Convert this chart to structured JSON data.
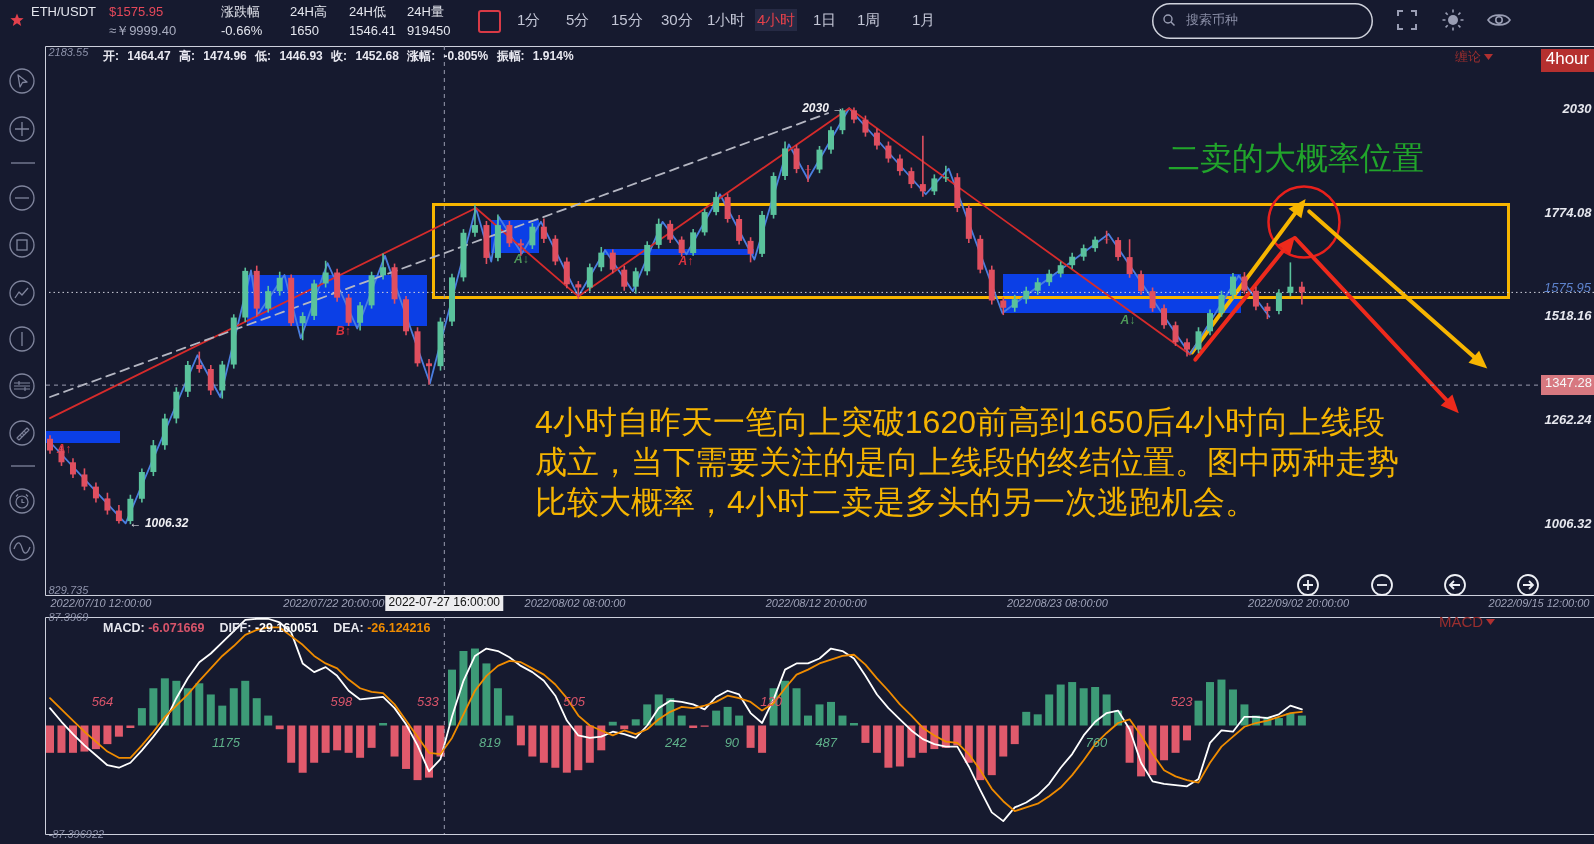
{
  "chart_data": [
    {
      "type": "other",
      "annotations": [
        "ETH/USDT",
        "$1575.95",
        "≈￥9999.40",
        "涨跌幅",
        "-0.66%",
        "24H高",
        "1650",
        "24H低",
        "1546.41",
        "24H量",
        "919450",
        "1分",
        "5分",
        "15分",
        "30分",
        "1小时",
        "4小时",
        "1日",
        "1周",
        "1月",
        "搜索币种"
      ]
    },
    {
      "type": "candlestick",
      "x": [
        "2022-07-10T12:00",
        "2022-07-11T00:00",
        "2022-07-11T12:00",
        "2022-07-12T00:00",
        "2022-07-12T12:00",
        "2022-07-13T00:00",
        "2022-07-13T12:00",
        "2022-07-14T00:00",
        "2022-07-14T12:00",
        "2022-07-15T00:00",
        "2022-07-15T12:00",
        "2022-07-16T00:00",
        "2022-07-16T12:00",
        "2022-07-17T00:00",
        "2022-07-17T12:00",
        "2022-07-18T00:00",
        "2022-07-18T12:00",
        "2022-07-19T00:00",
        "2022-07-19T12:00",
        "2022-07-20T00:00",
        "2022-07-20T12:00",
        "2022-07-21T00:00",
        "2022-07-21T12:00",
        "2022-07-22T00:00",
        "2022-07-22T12:00",
        "2022-07-23T00:00",
        "2022-07-23T12:00",
        "2022-07-24T00:00",
        "2022-07-24T12:00",
        "2022-07-25T00:00",
        "2022-07-25T12:00",
        "2022-07-26T00:00",
        "2022-07-26T12:00",
        "2022-07-27T00:00",
        "2022-07-27T12:00",
        "2022-07-28T00:00",
        "2022-07-28T12:00",
        "2022-07-29T00:00",
        "2022-07-29T12:00",
        "2022-07-30T00:00",
        "2022-07-30T12:00",
        "2022-07-31T00:00",
        "2022-07-31T12:00",
        "2022-08-01T00:00",
        "2022-08-01T12:00",
        "2022-08-02T00:00",
        "2022-08-02T12:00",
        "2022-08-03T00:00",
        "2022-08-03T12:00",
        "2022-08-04T00:00",
        "2022-08-04T12:00",
        "2022-08-05T00:00",
        "2022-08-05T12:00",
        "2022-08-06T00:00",
        "2022-08-06T12:00",
        "2022-08-07T00:00",
        "2022-08-07T12:00",
        "2022-08-08T00:00",
        "2022-08-08T12:00",
        "2022-08-09T00:00",
        "2022-08-09T12:00",
        "2022-08-10T00:00",
        "2022-08-10T12:00",
        "2022-08-11T00:00",
        "2022-08-11T12:00",
        "2022-08-12T00:00",
        "2022-08-12T12:00",
        "2022-08-13T00:00",
        "2022-08-13T12:00",
        "2022-08-14T00:00",
        "2022-08-14T12:00",
        "2022-08-15T00:00",
        "2022-08-15T12:00",
        "2022-08-16T00:00",
        "2022-08-16T12:00",
        "2022-08-17T00:00",
        "2022-08-17T12:00",
        "2022-08-18T00:00",
        "2022-08-18T12:00",
        "2022-08-19T00:00",
        "2022-08-19T12:00",
        "2022-08-20T00:00",
        "2022-08-20T12:00",
        "2022-08-21T00:00",
        "2022-08-21T12:00",
        "2022-08-22T00:00",
        "2022-08-22T12:00",
        "2022-08-23T00:00",
        "2022-08-23T12:00",
        "2022-08-24T00:00",
        "2022-08-24T12:00",
        "2022-08-25T00:00",
        "2022-08-25T12:00",
        "2022-08-26T00:00",
        "2022-08-26T12:00",
        "2022-08-27T00:00",
        "2022-08-27T12:00",
        "2022-08-28T00:00",
        "2022-08-28T12:00",
        "2022-08-29T00:00",
        "2022-08-29T12:00",
        "2022-08-30T00:00",
        "2022-08-30T12:00",
        "2022-08-31T00:00",
        "2022-08-31T12:00",
        "2022-09-01T00:00",
        "2022-09-01T12:00",
        "2022-09-02T00:00",
        "2022-09-02T12:00",
        "2022-09-03T00:00"
      ],
      "ohlc": [
        [
          1215,
          1222,
          1180,
          1186
        ],
        [
          1186,
          1195,
          1150,
          1157
        ],
        [
          1157,
          1165,
          1120,
          1127
        ],
        [
          1127,
          1140,
          1090,
          1097
        ],
        [
          1097,
          1105,
          1060,
          1068
        ],
        [
          1068,
          1080,
          1030,
          1038
        ],
        [
          1038,
          1050,
          1008,
          1012
        ],
        [
          1012,
          1075,
          1006.32,
          1067
        ],
        [
          1067,
          1140,
          1060,
          1133
        ],
        [
          1133,
          1210,
          1125,
          1199
        ],
        [
          1199,
          1275,
          1190,
          1265
        ],
        [
          1265,
          1340,
          1255,
          1331
        ],
        [
          1331,
          1405,
          1320,
          1397
        ],
        [
          1397,
          1428,
          1380,
          1387
        ],
        [
          1387,
          1395,
          1325,
          1334
        ],
        [
          1334,
          1405,
          1316,
          1398
        ],
        [
          1398,
          1520,
          1390,
          1514
        ],
        [
          1514,
          1635,
          1505,
          1629
        ],
        [
          1629,
          1640,
          1518,
          1536
        ],
        [
          1536,
          1590,
          1528,
          1579
        ],
        [
          1579,
          1625,
          1570,
          1612
        ],
        [
          1612,
          1618,
          1495,
          1500
        ],
        [
          1500,
          1525,
          1460,
          1518
        ],
        [
          1518,
          1605,
          1510,
          1598
        ],
        [
          1598,
          1652,
          1590,
          1625
        ],
        [
          1625,
          1632,
          1555,
          1563
        ],
        [
          1563,
          1570,
          1495,
          1501
        ],
        [
          1501,
          1550,
          1484,
          1544
        ],
        [
          1544,
          1625,
          1538,
          1618
        ],
        [
          1618,
          1670,
          1610,
          1638
        ],
        [
          1638,
          1645,
          1550,
          1559
        ],
        [
          1559,
          1565,
          1472,
          1480
        ],
        [
          1480,
          1488,
          1395,
          1401
        ],
        [
          1401,
          1410,
          1350,
          1394
        ],
        [
          1394,
          1512,
          1385,
          1504
        ],
        [
          1504,
          1620,
          1495,
          1613
        ],
        [
          1613,
          1730,
          1605,
          1723
        ],
        [
          1723,
          1790,
          1715,
          1742
        ],
        [
          1742,
          1750,
          1648,
          1661
        ],
        [
          1661,
          1766,
          1655,
          1742
        ],
        [
          1742,
          1750,
          1690,
          1697
        ],
        [
          1697,
          1705,
          1668,
          1692
        ],
        [
          1692,
          1745,
          1685,
          1738
        ],
        [
          1738,
          1756,
          1700,
          1708
        ],
        [
          1708,
          1715,
          1645,
          1652
        ],
        [
          1652,
          1660,
          1588,
          1596
        ],
        [
          1596,
          1602,
          1562,
          1588
        ],
        [
          1588,
          1645,
          1580,
          1638
        ],
        [
          1638,
          1686,
          1630,
          1674
        ],
        [
          1674,
          1680,
          1625,
          1632
        ],
        [
          1632,
          1640,
          1582,
          1590
        ],
        [
          1590,
          1635,
          1575,
          1628
        ],
        [
          1628,
          1700,
          1620,
          1693
        ],
        [
          1693,
          1756,
          1686,
          1745
        ],
        [
          1745,
          1752,
          1700,
          1706
        ],
        [
          1706,
          1712,
          1666,
          1673
        ],
        [
          1673,
          1730,
          1668,
          1724
        ],
        [
          1724,
          1780,
          1718,
          1774
        ],
        [
          1774,
          1822,
          1768,
          1811
        ],
        [
          1811,
          1818,
          1750,
          1757
        ],
        [
          1757,
          1765,
          1696,
          1703
        ],
        [
          1703,
          1710,
          1652,
          1671
        ],
        [
          1671,
          1775,
          1665,
          1767
        ],
        [
          1767,
          1870,
          1760,
          1863
        ],
        [
          1863,
          1946,
          1855,
          1931
        ],
        [
          1931,
          1938,
          1872,
          1880
        ],
        [
          1880,
          1888,
          1850,
          1879
        ],
        [
          1879,
          1935,
          1872,
          1928
        ],
        [
          1928,
          1983,
          1920,
          1976
        ],
        [
          1976,
          2028,
          1968,
          2025
        ],
        [
          2025,
          2030,
          1995,
          2002
        ],
        [
          2002,
          2010,
          1962,
          1970
        ],
        [
          1970,
          1978,
          1930,
          1938
        ],
        [
          1938,
          1946,
          1898,
          1906
        ],
        [
          1906,
          1914,
          1866,
          1875
        ],
        [
          1875,
          1882,
          1835,
          1843
        ],
        [
          1843,
          1960,
          1814,
          1825
        ],
        [
          1825,
          1865,
          1818,
          1857
        ],
        [
          1857,
          1886,
          1850,
          1860
        ],
        [
          1860,
          1868,
          1776,
          1784
        ],
        [
          1784,
          1790,
          1700,
          1708
        ],
        [
          1708,
          1715,
          1625,
          1632
        ],
        [
          1632,
          1640,
          1548,
          1556
        ],
        [
          1556,
          1562,
          1522,
          1538
        ],
        [
          1538,
          1568,
          1530,
          1559
        ],
        [
          1559,
          1588,
          1550,
          1580
        ],
        [
          1580,
          1610,
          1572,
          1601
        ],
        [
          1601,
          1630,
          1594,
          1622
        ],
        [
          1622,
          1650,
          1615,
          1643
        ],
        [
          1643,
          1672,
          1636,
          1664
        ],
        [
          1664,
          1692,
          1656,
          1685
        ],
        [
          1685,
          1712,
          1678,
          1706
        ],
        [
          1706,
          1726,
          1698,
          1705
        ],
        [
          1705,
          1710,
          1656,
          1663
        ],
        [
          1663,
          1705,
          1614,
          1621
        ],
        [
          1621,
          1628,
          1572,
          1579
        ],
        [
          1579,
          1586,
          1530,
          1537
        ],
        [
          1537,
          1544,
          1488,
          1495
        ],
        [
          1495,
          1502,
          1446,
          1453
        ],
        [
          1453,
          1460,
          1420,
          1435
        ],
        [
          1435,
          1488,
          1428,
          1480
        ],
        [
          1480,
          1532,
          1472,
          1525
        ],
        [
          1525,
          1578,
          1518,
          1570
        ],
        [
          1570,
          1622,
          1562,
          1615
        ],
        [
          1615,
          1624,
          1575,
          1580
        ],
        [
          1580,
          1588,
          1534,
          1541
        ],
        [
          1541,
          1548,
          1512,
          1530
        ],
        [
          1530,
          1582,
          1524,
          1575
        ],
        [
          1575,
          1648,
          1568,
          1590
        ],
        [
          1590,
          1600,
          1548,
          1575.95
        ]
      ],
      "xlim": [
        "2022-07-10T12:00",
        "2022-09-15T12:00"
      ],
      "xticks": [
        {
          "value": "2022-07-10T12:00",
          "label": "2022/07/10 12:00:00"
        },
        {
          "value": "2022-07-22T20:00",
          "label": "2022/07/22 20:00:00"
        },
        {
          "value": "2022-08-02T08:00",
          "label": "2022/08/02 08:00:00"
        },
        {
          "value": "2022-08-12T20:00",
          "label": "2022/08/12 20:00:00"
        },
        {
          "value": "2022-08-23T08:00",
          "label": "2022/08/23 08:00:00"
        },
        {
          "value": "2022-09-02T20:00",
          "label": "2022/09/02 20:00:00"
        },
        {
          "value": "2022-09-15T12:00",
          "label": "2022/09/15 12:00:00"
        }
      ],
      "ylim": [
        829.735,
        2183.55
      ],
      "yticks": [
        1006.32,
        1262.24,
        1518.16,
        1774.08,
        2030
      ],
      "y2lim": [
        829.735,
        2183.55
      ],
      "y2ticks": [
        829.735,
        2183.55
      ],
      "series": [
        {
          "type": "line",
          "color": "#4a7ee0",
          "x": [
            "2022-07-10T12:00",
            "2022-07-13T19:00",
            "2022-07-16T22:00",
            "2022-07-17T22:00",
            "2022-07-19T06:00",
            "2022-07-19T13:00",
            "2022-07-20T17:00",
            "2022-07-21T10:00",
            "2022-07-22T14:00",
            "2022-07-23T21:00",
            "2022-07-25T02:00",
            "2022-07-27T01:00",
            "2022-07-29T01:00",
            "2022-07-29T17:00",
            "2022-07-30T01:00",
            "2022-07-31T01:00",
            "2022-07-31T21:00",
            "2022-08-02T12:00",
            "2022-08-03T16:00",
            "2022-08-04T21:00",
            "2022-08-06T04:00",
            "2022-08-07T05:00",
            "2022-08-08T16:00",
            "2022-08-10T04:00",
            "2022-08-11T16:00",
            "2022-08-12T12:00",
            "2022-08-14T07:00",
            "2022-08-17T15:00",
            "2022-08-18T15:00",
            "2022-08-20T23:00",
            "2022-08-25T14:00",
            "2022-08-29T03:00",
            "2022-08-31T06:00",
            "2022-09-01T14:00"
          ],
          "values": [
            1207,
            1006.32,
            1421,
            1318,
            1630,
            1520,
            1619,
            1463,
            1648,
            1487,
            1666,
            1352,
            1784,
            1652,
            1762,
            1672,
            1750,
            1566,
            1680,
            1579,
            1750,
            1670,
            1818,
            1657,
            1941,
            1855,
            2030,
            1818,
            1881,
            1525,
            1720,
            1423,
            1617,
            1516
          ],
          "value_labels": [
            null,
            "← 1006.32",
            null,
            null,
            null,
            null,
            null,
            null,
            null,
            null,
            null,
            null,
            null,
            null,
            null,
            null,
            null,
            null,
            null,
            null,
            null,
            null,
            null,
            null,
            null,
            null,
            "2030 →",
            null,
            null,
            null,
            null,
            null,
            null,
            null
          ]
        },
        {
          "type": "line",
          "color": "#d62b2b",
          "x": [
            "2022-07-10T12:00",
            "2022-07-29T01:00",
            "2022-08-02T12:00",
            "2022-08-14T07:00",
            "2022-08-29T03:00"
          ],
          "values": [
            1266,
            1784,
            1566,
            2030,
            1423
          ]
        },
        {
          "type": "line",
          "color": "#b4b6c2",
          "line_style": "dashed",
          "x": [
            "2022-07-10T12:00",
            "2022-08-13T09:00"
          ],
          "values": [
            1318,
            2018
          ]
        }
      ],
      "ref_lines": [
        {
          "axis": "y",
          "value": 1575.95,
          "label": "1575.95",
          "color": "#d0d2dc",
          "line_style": "dotted"
        },
        {
          "axis": "y",
          "value": 1347.28,
          "label": "1347.28",
          "color": "#9a9cb0",
          "line_style": "dashed"
        },
        {
          "axis": "x",
          "value": "2022-07-27T16:00",
          "label": "2022-07-27 16:00:00",
          "color": "#9a9cb0",
          "line_style": "dashed"
        }
      ],
      "annotations": [
        "开: 1464.47 高: 1474.96 低: 1446.93 收: 1452.68 涨幅: -0.805% 振幅: 1.914%",
        "缠论",
        "4hour",
        {
          "text": "二卖的大概率位置",
          "x": "2022-09-02T12:00",
          "y": 1648
        },
        "4小时自昨天一笔向上突破1620前高到1650后4小时向上线段成立，当下需要关注的是向上线段的终结位置。图中两种走势比较大概率，4小时二卖是多头的另一次逃跑机会。",
        "A↑",
        "B↑",
        "A↓",
        "A↑",
        "A↓"
      ]
    },
    {
      "type": "bar",
      "x": [
        "2022-07-10T12:00",
        "2022-07-11T00:00",
        "2022-07-11T12:00",
        "2022-07-12T00:00",
        "2022-07-12T12:00",
        "2022-07-13T00:00",
        "2022-07-13T12:00",
        "2022-07-14T00:00",
        "2022-07-14T12:00",
        "2022-07-15T00:00",
        "2022-07-15T12:00",
        "2022-07-16T00:00",
        "2022-07-16T12:00",
        "2022-07-17T00:00",
        "2022-07-17T12:00",
        "2022-07-18T00:00",
        "2022-07-18T12:00",
        "2022-07-19T00:00",
        "2022-07-19T12:00",
        "2022-07-20T00:00",
        "2022-07-20T12:00",
        "2022-07-21T00:00",
        "2022-07-21T12:00",
        "2022-07-22T00:00",
        "2022-07-22T12:00",
        "2022-07-23T00:00",
        "2022-07-23T12:00",
        "2022-07-24T00:00",
        "2022-07-24T12:00",
        "2022-07-25T00:00",
        "2022-07-25T12:00",
        "2022-07-26T00:00",
        "2022-07-26T12:00",
        "2022-07-27T00:00",
        "2022-07-27T12:00",
        "2022-07-28T00:00",
        "2022-07-28T12:00",
        "2022-07-29T00:00",
        "2022-07-29T12:00",
        "2022-07-30T00:00",
        "2022-07-30T12:00",
        "2022-07-31T00:00",
        "2022-07-31T12:00",
        "2022-08-01T00:00",
        "2022-08-01T12:00",
        "2022-08-02T00:00",
        "2022-08-02T12:00",
        "2022-08-03T00:00",
        "2022-08-03T12:00",
        "2022-08-04T00:00",
        "2022-08-04T12:00",
        "2022-08-05T00:00",
        "2022-08-05T12:00",
        "2022-08-06T00:00",
        "2022-08-06T12:00",
        "2022-08-07T00:00",
        "2022-08-07T12:00",
        "2022-08-08T00:00",
        "2022-08-08T12:00",
        "2022-08-09T00:00",
        "2022-08-09T12:00",
        "2022-08-10T00:00",
        "2022-08-10T12:00",
        "2022-08-11T00:00",
        "2022-08-11T12:00",
        "2022-08-12T00:00",
        "2022-08-12T12:00",
        "2022-08-13T00:00",
        "2022-08-13T12:00",
        "2022-08-14T00:00",
        "2022-08-14T12:00",
        "2022-08-15T00:00",
        "2022-08-15T12:00",
        "2022-08-16T00:00",
        "2022-08-16T12:00",
        "2022-08-17T00:00",
        "2022-08-17T12:00",
        "2022-08-18T00:00",
        "2022-08-18T12:00",
        "2022-08-19T00:00",
        "2022-08-19T12:00",
        "2022-08-20T00:00",
        "2022-08-20T12:00",
        "2022-08-21T00:00",
        "2022-08-21T12:00",
        "2022-08-22T00:00",
        "2022-08-22T12:00",
        "2022-08-23T00:00",
        "2022-08-23T12:00",
        "2022-08-24T00:00",
        "2022-08-24T12:00",
        "2022-08-25T00:00",
        "2022-08-25T12:00",
        "2022-08-26T00:00",
        "2022-08-26T12:00",
        "2022-08-27T00:00",
        "2022-08-27T12:00",
        "2022-08-28T00:00",
        "2022-08-28T12:00",
        "2022-08-29T00:00",
        "2022-08-29T12:00",
        "2022-08-30T00:00",
        "2022-08-30T12:00",
        "2022-08-31T00:00",
        "2022-08-31T12:00",
        "2022-09-01T00:00",
        "2022-09-01T12:00",
        "2022-09-02T00:00",
        "2022-09-02T12:00",
        "2022-09-03T00:00"
      ],
      "xlim": [
        "2022-07-10T12:00",
        "2022-09-15T12:00"
      ],
      "ylim": [
        -87.396922,
        87.3969
      ],
      "yticks": [
        -87.396922,
        87.3969
      ],
      "tick_labels": "y",
      "series": [
        {
          "type": "bar",
          "values": [
            -22,
            -22,
            -22,
            -21,
            -19,
            -15,
            -9,
            -2,
            14,
            30,
            38,
            36,
            30,
            34,
            25,
            16,
            30,
            36,
            22,
            8,
            -3,
            -30,
            -38,
            -30,
            -22,
            -20,
            -22,
            -26,
            -18,
            2,
            -25,
            -35,
            -44,
            -42,
            -25,
            45,
            60,
            62,
            50,
            30,
            8,
            -16,
            -25,
            -30,
            -34,
            -38,
            -36,
            -30,
            -20,
            3,
            -3,
            5,
            17,
            25,
            22,
            8,
            -2,
            -1,
            12,
            15,
            8,
            -18,
            -22,
            30,
            36,
            30,
            8,
            17,
            19,
            8,
            2,
            -14,
            -22,
            -34,
            -33,
            -26,
            -22,
            -19,
            -18,
            -16,
            -30,
            -44,
            -40,
            -25,
            -15,
            11,
            9,
            25,
            33,
            35,
            30,
            31,
            25,
            12,
            -30,
            -41,
            -40,
            -28,
            -22,
            -12,
            20,
            35,
            37,
            29,
            17,
            8,
            7,
            6,
            10,
            8
          ],
          "colors": [
            "#e05a6c",
            "#e05a6c",
            "#e05a6c",
            "#e05a6c",
            "#e05a6c",
            "#e05a6c",
            "#e05a6c",
            "#e05a6c",
            "#3d9b77",
            "#3d9b77",
            "#3d9b77",
            "#3d9b77",
            "#3d9b77",
            "#3d9b77",
            "#3d9b77",
            "#3d9b77",
            "#3d9b77",
            "#3d9b77",
            "#3d9b77",
            "#3d9b77",
            "#e05a6c",
            "#e05a6c",
            "#e05a6c",
            "#e05a6c",
            "#e05a6c",
            "#e05a6c",
            "#e05a6c",
            "#e05a6c",
            "#e05a6c",
            "#3d9b77",
            "#e05a6c",
            "#e05a6c",
            "#e05a6c",
            "#e05a6c",
            "#e05a6c",
            "#3d9b77",
            "#3d9b77",
            "#3d9b77",
            "#3d9b77",
            "#3d9b77",
            "#3d9b77",
            "#e05a6c",
            "#e05a6c",
            "#e05a6c",
            "#e05a6c",
            "#e05a6c",
            "#e05a6c",
            "#e05a6c",
            "#e05a6c",
            "#3d9b77",
            "#e05a6c",
            "#3d9b77",
            "#3d9b77",
            "#3d9b77",
            "#3d9b77",
            "#3d9b77",
            "#e05a6c",
            "#e05a6c",
            "#3d9b77",
            "#3d9b77",
            "#3d9b77",
            "#e05a6c",
            "#e05a6c",
            "#3d9b77",
            "#3d9b77",
            "#3d9b77",
            "#3d9b77",
            "#3d9b77",
            "#3d9b77",
            "#3d9b77",
            "#3d9b77",
            "#e05a6c",
            "#e05a6c",
            "#e05a6c",
            "#e05a6c",
            "#e05a6c",
            "#e05a6c",
            "#e05a6c",
            "#e05a6c",
            "#e05a6c",
            "#e05a6c",
            "#e05a6c",
            "#e05a6c",
            "#e05a6c",
            "#e05a6c",
            "#3d9b77",
            "#3d9b77",
            "#3d9b77",
            "#3d9b77",
            "#3d9b77",
            "#3d9b77",
            "#3d9b77",
            "#3d9b77",
            "#3d9b77",
            "#e05a6c",
            "#e05a6c",
            "#e05a6c",
            "#e05a6c",
            "#e05a6c",
            "#e05a6c",
            "#3d9b77",
            "#3d9b77",
            "#3d9b77",
            "#3d9b77",
            "#3d9b77",
            "#3d9b77",
            "#3d9b77",
            "#3d9b77",
            "#3d9b77",
            "#3d9b77"
          ]
        },
        {
          "type": "line",
          "color": "#ffffff",
          "values": [
            14,
            3,
            -7,
            -16,
            -24,
            -32,
            -34,
            -30,
            -20,
            -9,
            3,
            22,
            38,
            51,
            58,
            67,
            76,
            85,
            86,
            86,
            83,
            75,
            50,
            43,
            47,
            40,
            28,
            21,
            22,
            23,
            14,
            1,
            -16,
            -37,
            -27,
            7,
            36,
            56,
            62,
            60,
            55,
            48,
            43,
            36,
            24,
            4,
            -8,
            -10,
            -9,
            -5,
            -7,
            -10,
            0,
            14,
            20,
            19,
            17,
            13,
            23,
            28,
            25,
            10,
            2,
            21,
            45,
            50,
            50,
            54,
            62,
            60,
            54,
            40,
            25,
            14,
            5,
            -4,
            -11,
            -15,
            -17,
            -17,
            -33,
            -52,
            -70,
            -77,
            -66,
            -62,
            -56,
            -47,
            -34,
            -23,
            -8,
            3,
            10,
            12,
            -3,
            -30,
            -45,
            -47,
            -48,
            -49,
            -43,
            -14,
            -4,
            -5,
            7,
            7,
            6,
            9,
            16,
            13
          ]
        },
        {
          "type": "line",
          "color": "#f08c00",
          "values": [
            22,
            13,
            4,
            -5,
            -13,
            -21,
            -26,
            -26,
            -16,
            -5,
            7,
            16,
            25,
            36,
            46,
            56,
            64,
            73,
            77,
            79,
            79,
            72,
            65,
            56,
            50,
            46,
            37,
            30,
            27,
            26,
            17,
            4,
            -9,
            -22,
            -23,
            -10,
            9,
            28,
            40,
            48,
            52,
            51,
            46,
            41,
            33,
            22,
            8,
            0,
            -4,
            -8,
            -4,
            -7,
            -3,
            5,
            11,
            15,
            14,
            16,
            19,
            24,
            22,
            19,
            12,
            18,
            30,
            41,
            45,
            50,
            53,
            56,
            57,
            49,
            38,
            28,
            17,
            8,
            -2,
            -8,
            -13,
            -14,
            -23,
            -36,
            -51,
            -61,
            -69,
            -66,
            -63,
            -57,
            -50,
            -40,
            -28,
            -15,
            -6,
            2,
            5,
            -8,
            -23,
            -36,
            -41,
            -44,
            -46,
            -30,
            -17,
            -9,
            -1,
            2,
            4,
            7,
            10,
            11
          ]
        }
      ],
      "ref_lines": [
        {
          "axis": "x",
          "value": "2022-07-27T16:00",
          "color": "#9a9cb0",
          "line_style": "dashed"
        }
      ],
      "annotations": [
        "MACD",
        "MACD: -6.071669",
        "DIFF: -29.160051",
        "DEA: -26.124216",
        "564",
        "1175",
        "598",
        "533",
        "819",
        "505",
        "242",
        "90",
        "120",
        "487",
        "760",
        "523"
      ]
    }
  ]
}
